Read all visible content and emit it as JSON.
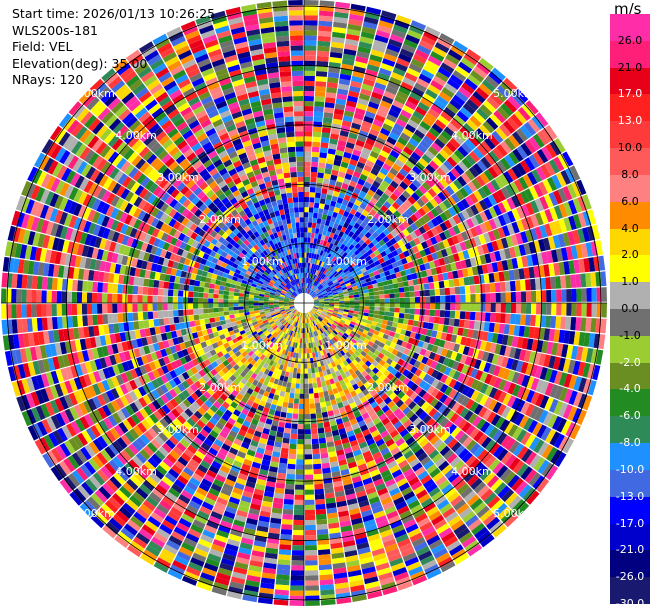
{
  "header": {
    "start_time": "Start time: 2026/01/13 10:26:25",
    "station": "WLS200s-181",
    "field": "Field: VEL",
    "elevation": "Elevation(deg): 35.00",
    "nrays": "NRays: 120"
  },
  "colorbar": {
    "unit": "m/s",
    "ticks": [
      "26.0",
      "21.0",
      "17.0",
      "13.0",
      "10.0",
      "8.0",
      "6.0",
      "4.0",
      "2.0",
      "1.0",
      "0.0",
      "-1.0",
      "-2.0",
      "-4.0",
      "-6.0",
      "-8.0",
      "-10.0",
      "-13.0",
      "-17.0",
      "-21.0",
      "-26.0",
      "-30.0"
    ],
    "colors": [
      "#ff2ea8",
      "#ff1e78",
      "#e8001a",
      "#ff2020",
      "#ff3a3a",
      "#ff5a5a",
      "#ff8080",
      "#ff8c00",
      "#ffd700",
      "#ffff00",
      "#b0b0b0",
      "#707070",
      "#9acd32",
      "#6b8e23",
      "#228b22",
      "#2e8b57",
      "#1e90ff",
      "#4169e1",
      "#0000ff",
      "#0000cd",
      "#000080",
      "#191970"
    ]
  },
  "range_rings": [
    "1.00km",
    "2.00km",
    "3.00km",
    "4.00km",
    "5.00km"
  ],
  "chart_data": {
    "type": "ppi",
    "field": "VEL",
    "units": "m/s",
    "nrays": 120,
    "elevation_deg": 35.0,
    "max_range_km": 5.0
  }
}
